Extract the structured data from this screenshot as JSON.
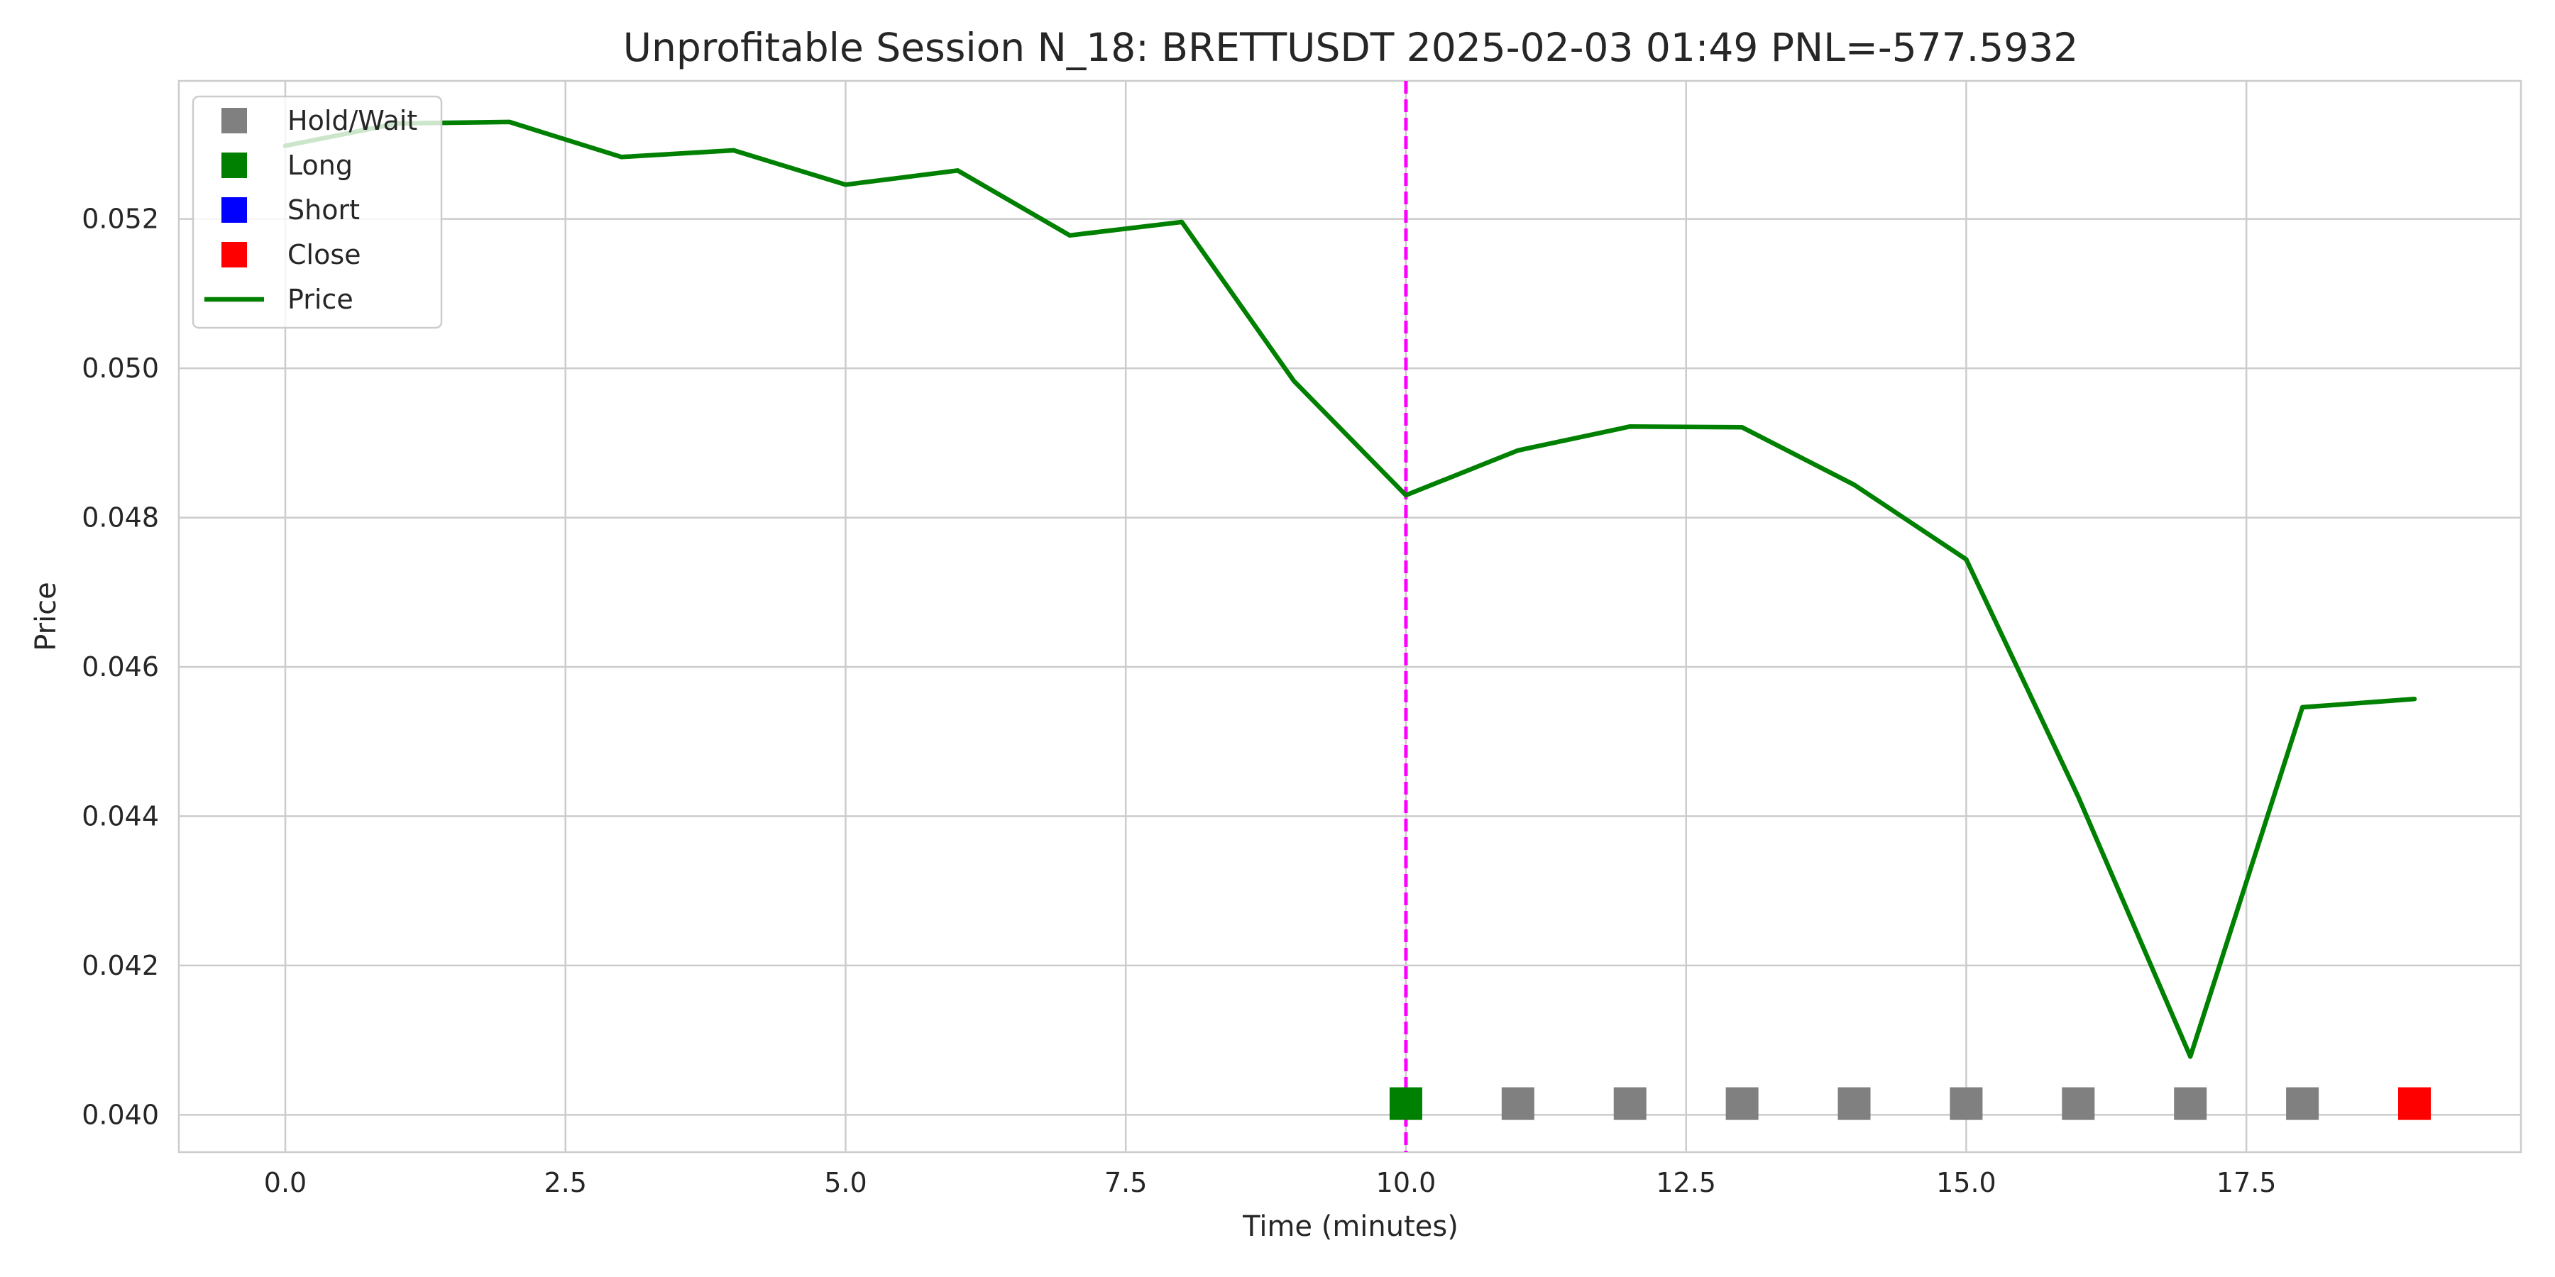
{
  "chart_data": {
    "type": "line",
    "title": "Unprofitable Session N_18: BRETTUSDT 2025-02-03 01:49  PNL=-577.5932",
    "xlabel": "Time (minutes)",
    "ylabel": "Price",
    "xlim": [
      -0.95,
      19.95
    ],
    "ylim": [
      0.0395,
      0.05385
    ],
    "x_ticks": [
      0,
      2.5,
      5,
      7.5,
      10,
      12.5,
      15,
      17.5
    ],
    "x_tick_labels": [
      "0.0",
      "2.5",
      "5.0",
      "7.5",
      "10.0",
      "12.5",
      "15.0",
      "17.5"
    ],
    "y_ticks": [
      0.04,
      0.042,
      0.044,
      0.046,
      0.048,
      0.05,
      0.052
    ],
    "y_tick_labels": [
      "0.040",
      "0.042",
      "0.044",
      "0.046",
      "0.048",
      "0.050",
      "0.052"
    ],
    "grid": true,
    "legend_position": "top-left",
    "series": [
      {
        "name": "Price",
        "color": "#008000",
        "x": [
          0,
          1,
          2,
          3,
          4,
          5,
          6,
          7,
          8,
          9,
          10,
          11,
          12,
          13,
          14,
          15,
          16,
          17,
          18,
          19
        ],
        "y": [
          0.05298,
          0.05328,
          0.0533,
          0.05283,
          0.05292,
          0.05246,
          0.05265,
          0.05178,
          0.05196,
          0.04983,
          0.0483,
          0.0489,
          0.04922,
          0.04921,
          0.04844,
          0.04744,
          0.04426,
          0.04078,
          0.04546,
          0.04557
        ]
      }
    ],
    "actions": {
      "legend": [
        {
          "name": "Hold/Wait",
          "color": "#808080"
        },
        {
          "name": "Long",
          "color": "#008000"
        },
        {
          "name": "Short",
          "color": "#0000ff"
        },
        {
          "name": "Close",
          "color": "#ff0000"
        }
      ],
      "marker_y": 0.04015,
      "points": [
        {
          "x": 10,
          "action": "Long",
          "color": "#008000"
        },
        {
          "x": 11,
          "action": "Hold/Wait",
          "color": "#808080"
        },
        {
          "x": 12,
          "action": "Hold/Wait",
          "color": "#808080"
        },
        {
          "x": 13,
          "action": "Hold/Wait",
          "color": "#808080"
        },
        {
          "x": 14,
          "action": "Hold/Wait",
          "color": "#808080"
        },
        {
          "x": 15,
          "action": "Hold/Wait",
          "color": "#808080"
        },
        {
          "x": 16,
          "action": "Hold/Wait",
          "color": "#808080"
        },
        {
          "x": 17,
          "action": "Hold/Wait",
          "color": "#808080"
        },
        {
          "x": 18,
          "action": "Hold/Wait",
          "color": "#808080"
        },
        {
          "x": 19,
          "action": "Close",
          "color": "#ff0000"
        }
      ]
    },
    "vertical_line": {
      "x": 10,
      "color": "#ff00ff",
      "style": "dashed"
    }
  }
}
